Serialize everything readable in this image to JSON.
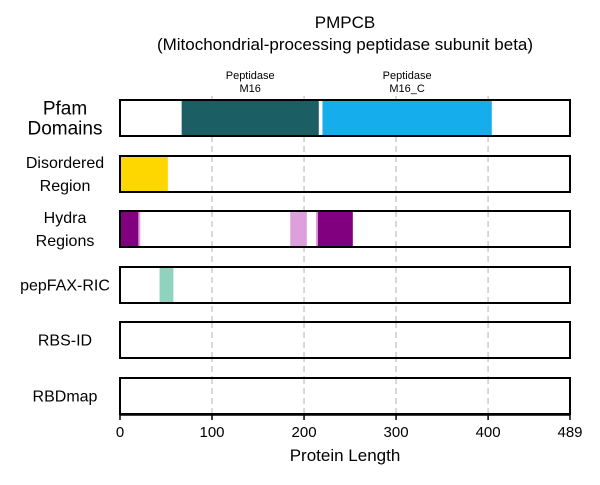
{
  "chart_data": {
    "type": "bar",
    "title": "PMPCB",
    "subtitle": "(Mitochondrial-processing peptidase subunit beta)",
    "xlabel": "Protein Length",
    "xlim": [
      0,
      489
    ],
    "xticks": [
      0,
      100,
      200,
      300,
      400,
      489
    ],
    "grid_x": [
      100,
      200,
      300,
      400
    ],
    "tracks": [
      {
        "label_lines": [
          "Pfam",
          "Domains"
        ],
        "segments": [
          {
            "start": 67,
            "end": 216,
            "color": "#1b5e63",
            "annotation": [
              "Peptidase",
              "M16"
            ]
          },
          {
            "start": 220,
            "end": 404,
            "color": "#16adec",
            "annotation": [
              "Peptidase",
              "M16_C"
            ]
          }
        ]
      },
      {
        "label_lines": [
          "Disordered",
          "Region"
        ],
        "segments": [
          {
            "start": 0,
            "end": 52,
            "color": "#ffd700"
          }
        ]
      },
      {
        "label_lines": [
          "Hydra",
          "Regions"
        ],
        "segments": [
          {
            "start": 0,
            "end": 20,
            "color": "#800080"
          },
          {
            "start": 20,
            "end": 22,
            "color": "#dda0dd"
          },
          {
            "start": 185,
            "end": 203,
            "color": "#dda0dd"
          },
          {
            "start": 213,
            "end": 215,
            "color": "#dda0dd"
          },
          {
            "start": 215,
            "end": 253,
            "color": "#800080"
          }
        ]
      },
      {
        "label_lines": [
          "pepFAX-RIC"
        ],
        "segments": [
          {
            "start": 43,
            "end": 58,
            "color": "#8fd3bf"
          }
        ]
      },
      {
        "label_lines": [
          "RBS-ID"
        ],
        "segments": []
      },
      {
        "label_lines": [
          "RBDmap"
        ],
        "segments": []
      }
    ]
  }
}
